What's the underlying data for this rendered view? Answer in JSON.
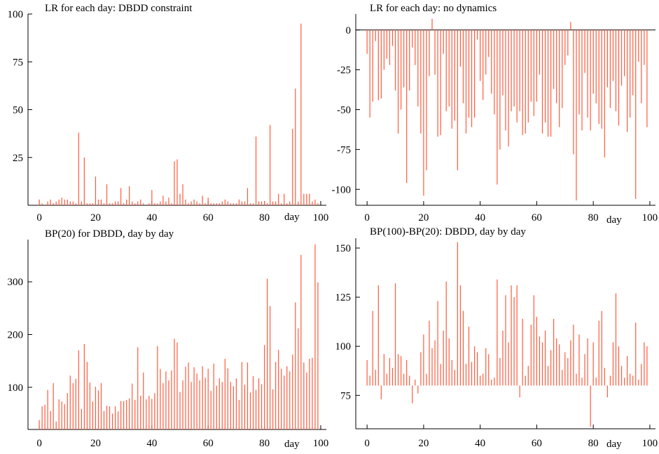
{
  "colors": {
    "spike": "#ff5a3c",
    "axis": "#000000",
    "background": "#ffffff"
  },
  "chart_data": [
    {
      "type": "bar",
      "title": "LR for each day: DBDD constraint",
      "xlabel": "day",
      "ylabel": "",
      "xlim": [
        -4,
        102
      ],
      "ylim": [
        0,
        100
      ],
      "baseline": 0,
      "x_ticks": [
        0,
        20,
        40,
        60,
        80,
        100
      ],
      "y_ticks": [
        25,
        50,
        75,
        100
      ],
      "x": [
        0,
        1,
        2,
        3,
        4,
        5,
        6,
        7,
        8,
        9,
        10,
        11,
        12,
        13,
        14,
        15,
        16,
        17,
        18,
        19,
        20,
        21,
        22,
        23,
        24,
        25,
        26,
        27,
        28,
        29,
        30,
        31,
        32,
        33,
        34,
        35,
        36,
        37,
        38,
        39,
        40,
        41,
        42,
        43,
        44,
        45,
        46,
        47,
        48,
        49,
        50,
        51,
        52,
        53,
        54,
        55,
        56,
        57,
        58,
        59,
        60,
        61,
        62,
        63,
        64,
        65,
        66,
        67,
        68,
        69,
        70,
        71,
        72,
        73,
        74,
        75,
        76,
        77,
        78,
        79,
        80,
        81,
        82,
        83,
        84,
        85,
        86,
        87,
        88,
        89,
        90,
        91,
        92,
        93,
        94,
        95,
        96,
        97,
        98,
        99
      ],
      "values": [
        3,
        1,
        0,
        2,
        3,
        1,
        2,
        3,
        4,
        3,
        3,
        2,
        2,
        1,
        38,
        2,
        25,
        1,
        1,
        1,
        15,
        3,
        3,
        1,
        11,
        1,
        1,
        2,
        2,
        9,
        1,
        3,
        10,
        2,
        1,
        2,
        3,
        1,
        0,
        1,
        8,
        1,
        1,
        2,
        5,
        2,
        4,
        1,
        23,
        24,
        6,
        11,
        3,
        1,
        2,
        3,
        2,
        1,
        5,
        1,
        4,
        1,
        1,
        1,
        1,
        2,
        3,
        2,
        1,
        1,
        1,
        3,
        2,
        2,
        9,
        1,
        1,
        36,
        2,
        2,
        2,
        1,
        42,
        2,
        2,
        6,
        1,
        6,
        1,
        2,
        40,
        61,
        2,
        95,
        6,
        6,
        6,
        2,
        3,
        1
      ]
    },
    {
      "type": "bar",
      "title": "LR for each day: no dynamics",
      "xlabel": "day",
      "ylabel": "",
      "xlim": [
        -4,
        102
      ],
      "ylim": [
        -110,
        10
      ],
      "baseline": 0,
      "x_ticks": [
        0,
        20,
        40,
        60,
        80,
        100
      ],
      "y_ticks": [
        0,
        -25,
        -50,
        -75,
        -100
      ],
      "x": [
        0,
        1,
        2,
        3,
        4,
        5,
        6,
        7,
        8,
        9,
        10,
        11,
        12,
        13,
        14,
        15,
        16,
        17,
        18,
        19,
        20,
        21,
        22,
        23,
        24,
        25,
        26,
        27,
        28,
        29,
        30,
        31,
        32,
        33,
        34,
        35,
        36,
        37,
        38,
        39,
        40,
        41,
        42,
        43,
        44,
        45,
        46,
        47,
        48,
        49,
        50,
        51,
        52,
        53,
        54,
        55,
        56,
        57,
        58,
        59,
        60,
        61,
        62,
        63,
        64,
        65,
        66,
        67,
        68,
        69,
        70,
        71,
        72,
        73,
        74,
        75,
        76,
        77,
        78,
        79,
        80,
        81,
        82,
        83,
        84,
        85,
        86,
        87,
        88,
        89,
        90,
        91,
        92,
        93,
        94,
        95,
        96,
        97,
        98,
        99
      ],
      "values": [
        -15,
        -55,
        -45,
        -7,
        -44,
        -43,
        -25,
        -18,
        -22,
        -10,
        -38,
        -65,
        -50,
        -36,
        -96,
        -38,
        -11,
        -22,
        -48,
        -65,
        -104,
        -88,
        -29,
        7,
        -28,
        -67,
        -66,
        -15,
        -51,
        -48,
        -62,
        -57,
        -88,
        -23,
        -46,
        -65,
        -55,
        -61,
        -55,
        -6,
        -32,
        -44,
        -28,
        -17,
        -40,
        -53,
        -97,
        -75,
        -41,
        -63,
        -73,
        -51,
        -48,
        -58,
        -51,
        -66,
        -65,
        -58,
        -45,
        -54,
        -45,
        -28,
        -65,
        -58,
        -67,
        -67,
        -37,
        -46,
        -61,
        -49,
        -22,
        -16,
        5,
        -78,
        -107,
        -53,
        -63,
        -27,
        -55,
        -63,
        -40,
        -46,
        -59,
        -62,
        -80,
        -36,
        -49,
        -32,
        -51,
        -60,
        -35,
        -29,
        -64,
        -55,
        -41,
        -106,
        -20,
        -46,
        -22,
        -61
      ]
    },
    {
      "type": "bar",
      "title": "BP(20) for DBDD, day by day",
      "xlabel": "day",
      "ylabel": "",
      "xlim": [
        -4,
        102
      ],
      "ylim": [
        20,
        380
      ],
      "baseline": 20,
      "x_ticks": [
        0,
        20,
        40,
        60,
        80,
        100
      ],
      "y_ticks": [
        100,
        200,
        300
      ],
      "x": [
        0,
        1,
        2,
        3,
        4,
        5,
        6,
        7,
        8,
        9,
        10,
        11,
        12,
        13,
        14,
        15,
        16,
        17,
        18,
        19,
        20,
        21,
        22,
        23,
        24,
        25,
        26,
        27,
        28,
        29,
        30,
        31,
        32,
        33,
        34,
        35,
        36,
        37,
        38,
        39,
        40,
        41,
        42,
        43,
        44,
        45,
        46,
        47,
        48,
        49,
        50,
        51,
        52,
        53,
        54,
        55,
        56,
        57,
        58,
        59,
        60,
        61,
        62,
        63,
        64,
        65,
        66,
        67,
        68,
        69,
        70,
        71,
        72,
        73,
        74,
        75,
        76,
        77,
        78,
        79,
        80,
        81,
        82,
        83,
        84,
        85,
        86,
        87,
        88,
        89,
        90,
        91,
        92,
        93,
        94,
        95,
        96,
        97,
        98,
        99
      ],
      "values": [
        38,
        64,
        67,
        95,
        55,
        108,
        35,
        77,
        73,
        68,
        89,
        122,
        108,
        116,
        170,
        59,
        182,
        148,
        109,
        73,
        101,
        94,
        108,
        55,
        65,
        64,
        50,
        64,
        54,
        74,
        74,
        76,
        79,
        107,
        76,
        176,
        84,
        128,
        77,
        84,
        78,
        89,
        178,
        135,
        108,
        130,
        113,
        132,
        192,
        185,
        91,
        113,
        139,
        147,
        110,
        138,
        126,
        113,
        140,
        118,
        135,
        93,
        145,
        103,
        117,
        110,
        154,
        136,
        110,
        102,
        117,
        76,
        148,
        105,
        147,
        90,
        121,
        95,
        117,
        106,
        180,
        306,
        254,
        96,
        148,
        171,
        135,
        122,
        140,
        130,
        162,
        261,
        212,
        351,
        147,
        128,
        154,
        156,
        371,
        299
      ]
    },
    {
      "type": "bar",
      "title": "BP(100)-BP(20): DBDD, day by day",
      "xlabel": "day",
      "ylabel": "",
      "xlim": [
        -4,
        102
      ],
      "ylim": [
        58,
        155
      ],
      "baseline": 80,
      "x_ticks": [
        0,
        20,
        40,
        60,
        80,
        100
      ],
      "y_ticks": [
        75,
        100,
        125,
        150
      ],
      "x": [
        0,
        1,
        2,
        3,
        4,
        5,
        6,
        7,
        8,
        9,
        10,
        11,
        12,
        13,
        14,
        15,
        16,
        17,
        18,
        19,
        20,
        21,
        22,
        23,
        24,
        25,
        26,
        27,
        28,
        29,
        30,
        31,
        32,
        33,
        34,
        35,
        36,
        37,
        38,
        39,
        40,
        41,
        42,
        43,
        44,
        45,
        46,
        47,
        48,
        49,
        50,
        51,
        52,
        53,
        54,
        55,
        56,
        57,
        58,
        59,
        60,
        61,
        62,
        63,
        64,
        65,
        66,
        67,
        68,
        69,
        70,
        71,
        72,
        73,
        74,
        75,
        76,
        77,
        78,
        79,
        80,
        81,
        82,
        83,
        84,
        85,
        86,
        87,
        88,
        89,
        90,
        91,
        92,
        93,
        94,
        95,
        96,
        97,
        98,
        99
      ],
      "values": [
        93,
        85,
        118,
        88,
        131,
        73,
        96,
        86,
        94,
        89,
        132,
        96,
        95,
        86,
        93,
        85,
        71,
        83,
        76,
        97,
        106,
        86,
        113,
        99,
        103,
        123,
        91,
        108,
        133,
        104,
        93,
        88,
        153,
        131,
        118,
        91,
        110,
        92,
        100,
        97,
        85,
        86,
        99,
        96,
        83,
        84,
        134,
        94,
        108,
        126,
        102,
        131,
        125,
        131,
        74,
        114,
        85,
        90,
        111,
        126,
        115,
        105,
        102,
        108,
        90,
        98,
        114,
        104,
        101,
        88,
        97,
        94,
        103,
        111,
        86,
        106,
        84,
        96,
        104,
        59,
        102,
        84,
        113,
        118,
        89,
        74,
        85,
        102,
        127,
        100,
        90,
        84,
        95,
        86,
        85,
        112,
        83,
        91,
        102,
        100
      ]
    }
  ]
}
